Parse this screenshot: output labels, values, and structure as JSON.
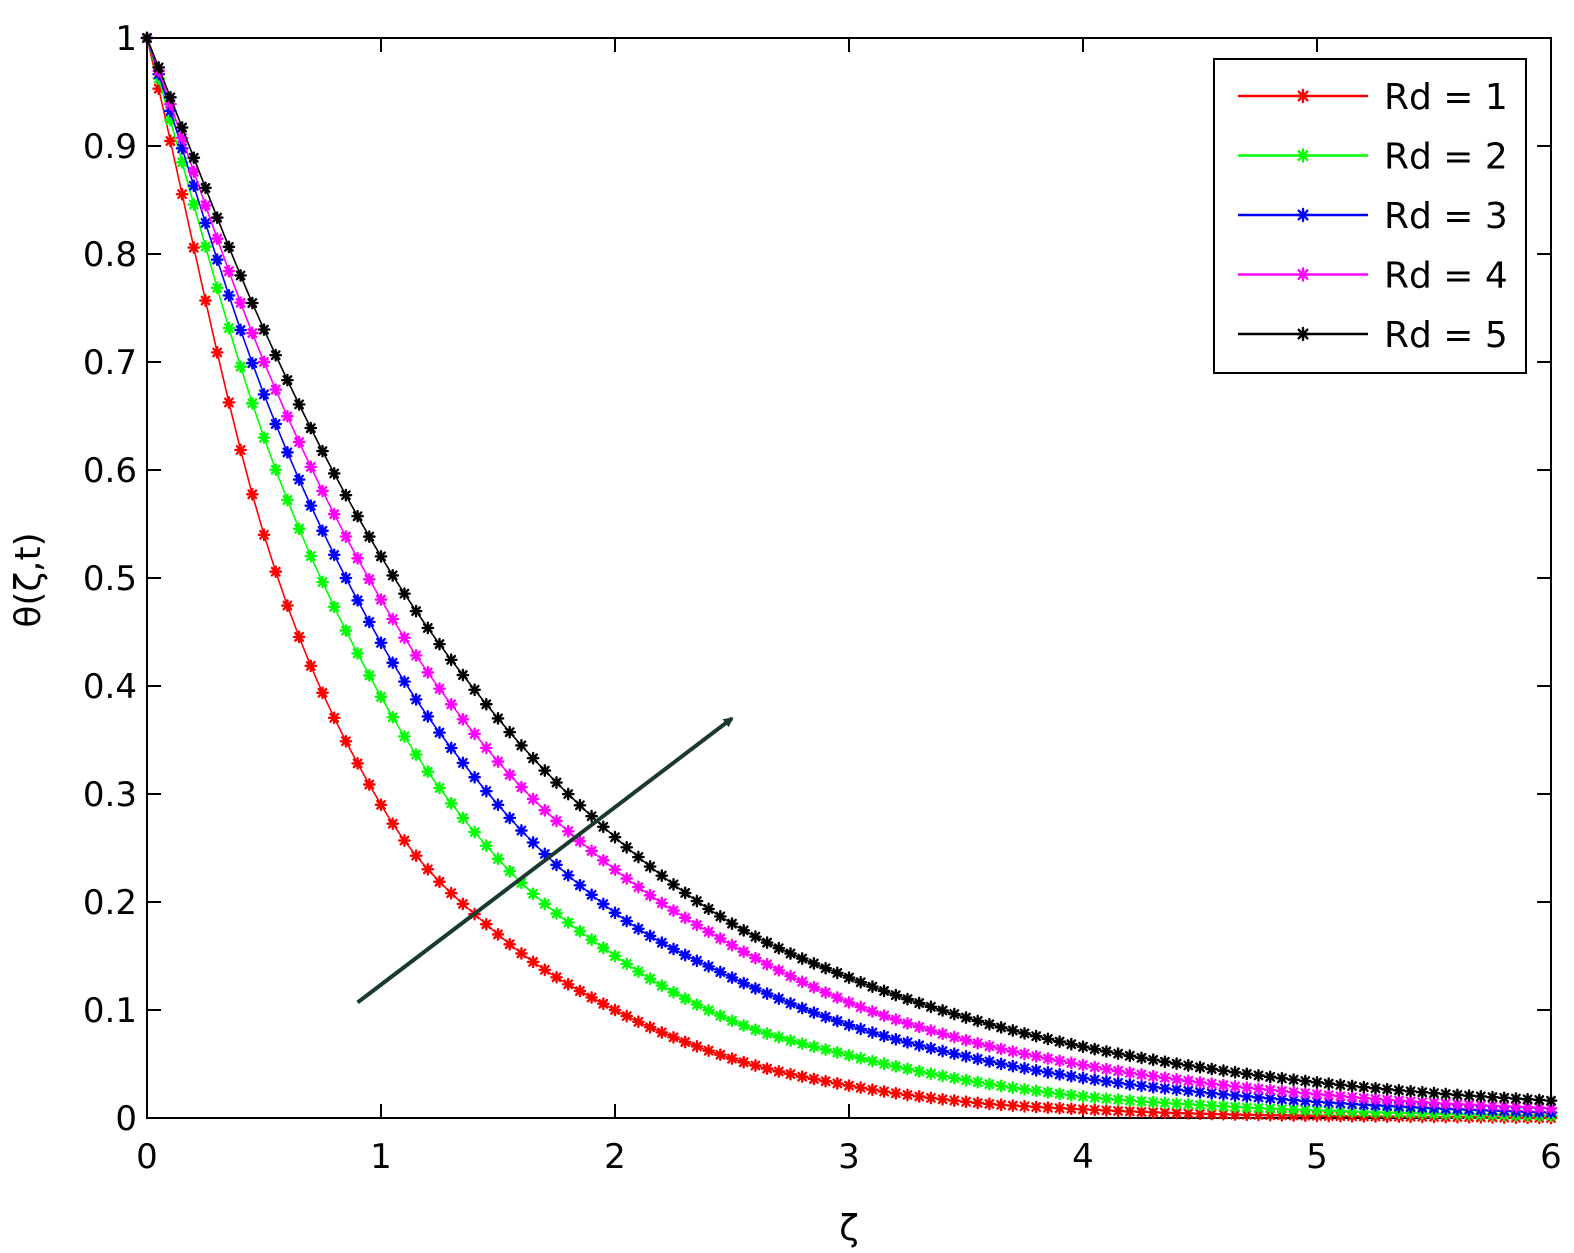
{
  "chart_data": {
    "type": "line",
    "title": "",
    "xlabel": "ζ",
    "ylabel": "θ(ζ,t)",
    "xlim": [
      0,
      6
    ],
    "ylim": [
      0,
      1
    ],
    "xticks": [
      "0",
      "1",
      "2",
      "3",
      "4",
      "5",
      "6"
    ],
    "yticks": [
      "0",
      "0.1",
      "0.2",
      "0.3",
      "0.4",
      "0.5",
      "0.6",
      "0.7",
      "0.8",
      "0.9",
      "1"
    ],
    "grid": false,
    "legend_position": "top-right",
    "x": [
      0,
      0.5,
      1,
      1.5,
      2,
      2.5,
      3,
      3.5,
      4,
      4.5,
      5,
      5.5,
      6
    ],
    "series": [
      {
        "name": "Rd = 1",
        "color": "#ff0000",
        "values": [
          1.0,
          0.54,
          0.29,
          0.17,
          0.1,
          0.055,
          0.03,
          0.015,
          0.008,
          0.004,
          0.002,
          0.001,
          0.0
        ]
      },
      {
        "name": "Rd = 2",
        "color": "#00ff00",
        "values": [
          1.0,
          0.63,
          0.39,
          0.24,
          0.15,
          0.09,
          0.058,
          0.035,
          0.02,
          0.012,
          0.007,
          0.004,
          0.002
        ]
      },
      {
        "name": "Rd = 3",
        "color": "#0000ff",
        "values": [
          1.0,
          0.67,
          0.44,
          0.29,
          0.19,
          0.13,
          0.086,
          0.057,
          0.037,
          0.024,
          0.015,
          0.009,
          0.005
        ]
      },
      {
        "name": "Rd = 4",
        "color": "#ff00ff",
        "values": [
          1.0,
          0.7,
          0.48,
          0.33,
          0.23,
          0.16,
          0.107,
          0.072,
          0.049,
          0.033,
          0.022,
          0.014,
          0.009
        ]
      },
      {
        "name": "Rd = 5",
        "color": "#000000",
        "values": [
          1.0,
          0.73,
          0.52,
          0.37,
          0.26,
          0.18,
          0.13,
          0.093,
          0.066,
          0.047,
          0.033,
          0.023,
          0.016
        ]
      }
    ],
    "annotations": [
      {
        "type": "arrow",
        "color": "#1a3a2e",
        "from": [
          0.9,
          0.107
        ],
        "to": [
          2.5,
          0.37
        ]
      }
    ]
  }
}
